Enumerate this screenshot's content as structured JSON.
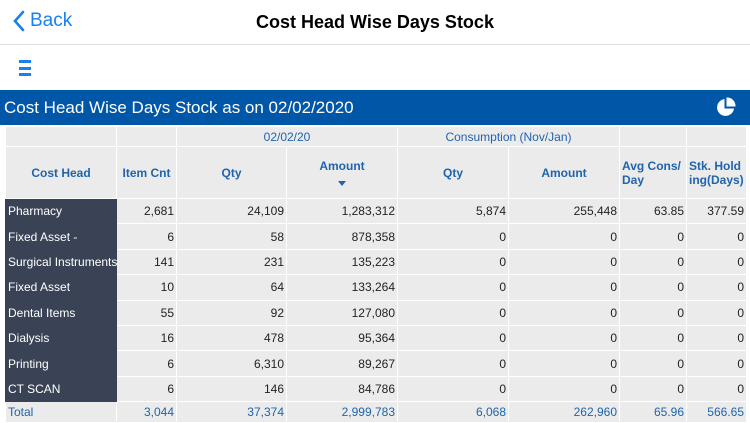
{
  "nav": {
    "back_label": "Back",
    "title": "Cost Head Wise Days Stock"
  },
  "band": {
    "title": "Cost Head Wise Days Stock as on 02/02/2020",
    "icon": "pie-chart-icon"
  },
  "colors": {
    "accent": "#1a7ff0",
    "band": "#0057a8",
    "name_column": "#3a4356",
    "header_text": "#1f64ad"
  },
  "table": {
    "group_headers": [
      "",
      "",
      "02/02/20",
      "Consumption (Nov/Jan)",
      "",
      ""
    ],
    "headers": [
      "Cost Head",
      "Item Cnt",
      "Qty",
      "Amount",
      "Qty",
      "Amount",
      "Avg Cons/ Day",
      "Stk. Holding(Days)"
    ],
    "sorted_column": "Amount",
    "rows": [
      [
        "Pharmacy",
        "2,681",
        "24,109",
        "1,283,312",
        "5,874",
        "255,448",
        "63.85",
        "377.59"
      ],
      [
        "Fixed Asset -",
        "6",
        "58",
        "878,358",
        "0",
        "0",
        "0",
        "0"
      ],
      [
        "Surgical Instruments",
        "141",
        "231",
        "135,223",
        "0",
        "0",
        "0",
        "0"
      ],
      [
        "Fixed Asset",
        "10",
        "64",
        "133,264",
        "0",
        "0",
        "0",
        "0"
      ],
      [
        "Dental Items",
        "55",
        "92",
        "127,080",
        "0",
        "0",
        "0",
        "0"
      ],
      [
        "Dialysis",
        "16",
        "478",
        "95,364",
        "0",
        "0",
        "0",
        "0"
      ],
      [
        "Printing",
        "6",
        "6,310",
        "89,267",
        "0",
        "0",
        "0",
        "0"
      ],
      [
        "CT SCAN",
        "6",
        "146",
        "84,786",
        "0",
        "0",
        "0",
        "0"
      ]
    ],
    "total": [
      "Total",
      "3,044",
      "37,374",
      "2,999,783",
      "6,068",
      "262,960",
      "65.96",
      "566.65"
    ]
  }
}
